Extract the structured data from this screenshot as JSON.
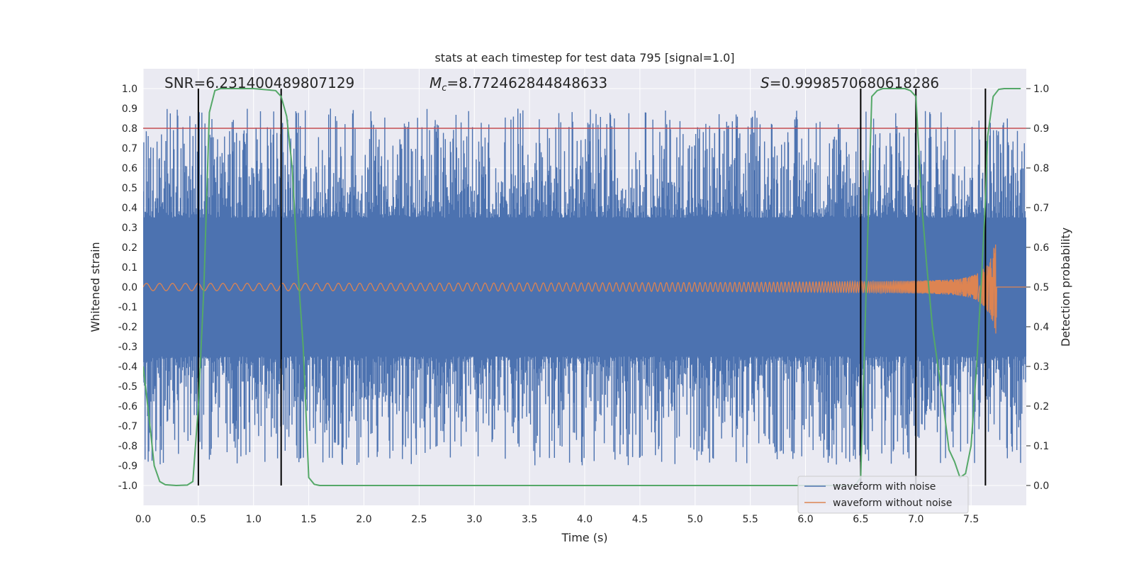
{
  "chart_data": {
    "type": "line",
    "title": "stats at each timestep for test data 795 [signal=1.0]",
    "xlabel": "Time (s)",
    "ylabel": "Whitened strain",
    "ylabel_right": "Detection probability",
    "xlim": [
      0.0,
      8.0
    ],
    "ylim": [
      -1.1,
      1.1
    ],
    "ylim_right": [
      -0.05,
      1.05
    ],
    "x_ticks": [
      "0.0",
      "0.5",
      "1.0",
      "1.5",
      "2.0",
      "2.5",
      "3.0",
      "3.5",
      "4.0",
      "4.5",
      "5.0",
      "5.5",
      "6.0",
      "6.5",
      "7.0",
      "7.5"
    ],
    "y_ticks": [
      "1.0",
      "0.9",
      "0.8",
      "0.7",
      "0.6",
      "0.5",
      "0.4",
      "0.3",
      "0.2",
      "0.1",
      "0.0",
      "-0.1",
      "-0.2",
      "-0.3",
      "-0.4",
      "-0.5",
      "-0.6",
      "-0.7",
      "-0.8",
      "-0.9",
      "-1.0"
    ],
    "y_ticks_right": [
      "1.0",
      "0.9",
      "0.8",
      "0.7",
      "0.6",
      "0.5",
      "0.4",
      "0.3",
      "0.2",
      "0.1",
      "0.0"
    ],
    "annotations": {
      "snr": "SNR=6.231400489807129",
      "mc_symbol": "M",
      "mc_sub": "c",
      "mc_value": "=8.772462844848633",
      "s_symbol": "S",
      "s_value": "=0.9998570680618286"
    },
    "threshold": 0.9,
    "vertical_lines": [
      0.5,
      1.25,
      6.5,
      7.0,
      7.63
    ],
    "noisy_waveform": {
      "name": "waveform with noise",
      "color": "#4c72b0",
      "amplitude_range": [
        -0.95,
        0.95
      ]
    },
    "clean_waveform": {
      "name": "waveform without noise",
      "color": "#dd8452",
      "merger_time": 7.73,
      "peak": 0.27
    },
    "detection_probability": {
      "color": "#55a868",
      "x": [
        0.0,
        0.05,
        0.1,
        0.15,
        0.2,
        0.3,
        0.4,
        0.45,
        0.5,
        0.55,
        0.6,
        0.65,
        0.7,
        1.0,
        1.2,
        1.25,
        1.3,
        1.35,
        1.4,
        1.45,
        1.5,
        1.55,
        1.6,
        2.0,
        3.0,
        4.0,
        5.0,
        6.0,
        6.4,
        6.45,
        6.5,
        6.55,
        6.6,
        6.65,
        6.7,
        6.8,
        6.9,
        6.95,
        7.0,
        7.05,
        7.1,
        7.15,
        7.2,
        7.25,
        7.3,
        7.35,
        7.4,
        7.45,
        7.5,
        7.55,
        7.6,
        7.63,
        7.65,
        7.7,
        7.75,
        7.8,
        7.85,
        7.9,
        7.95
      ],
      "y": [
        0.3,
        0.18,
        0.05,
        0.01,
        0.002,
        0.0,
        0.001,
        0.01,
        0.2,
        0.5,
        0.94,
        0.995,
        1.0,
        1.0,
        0.995,
        0.98,
        0.93,
        0.8,
        0.55,
        0.35,
        0.02,
        0.003,
        0.0,
        0.0,
        0.0,
        0.0,
        0.0,
        0.0,
        0.0,
        0.0,
        0.02,
        0.5,
        0.98,
        0.995,
        1.0,
        1.0,
        1.0,
        0.995,
        0.98,
        0.72,
        0.55,
        0.4,
        0.3,
        0.2,
        0.09,
        0.06,
        0.02,
        0.03,
        0.1,
        0.3,
        0.55,
        0.72,
        0.88,
        0.98,
        0.998,
        1.0,
        1.0,
        1.0,
        1.0
      ]
    },
    "vline_color": "#000000",
    "threshold_color": "#c44e52",
    "axes_bg": "#eaeaf2",
    "grid_color": "#ffffff",
    "legend_position": "lower-right"
  }
}
